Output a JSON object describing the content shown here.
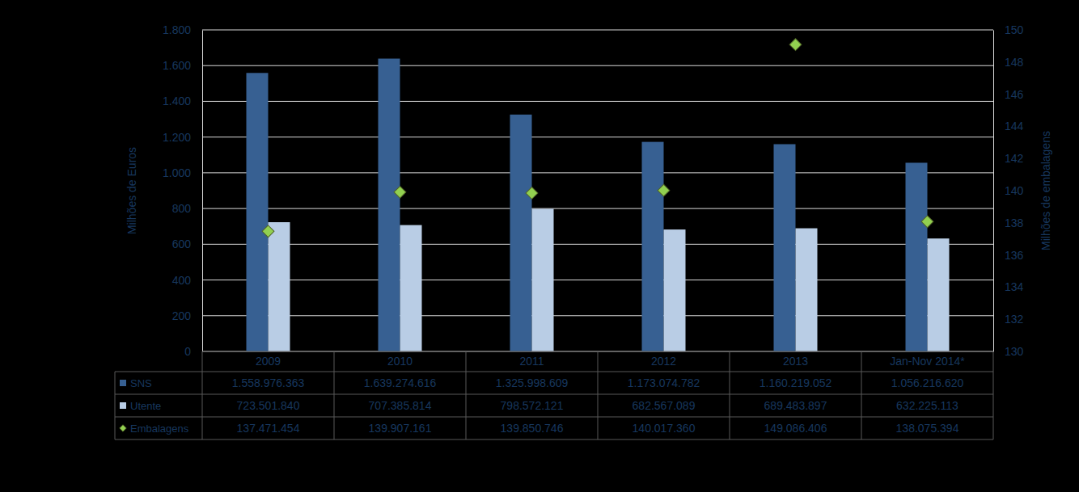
{
  "chart_data": {
    "type": "bar",
    "y_label": "Milhões de Euros",
    "y2_label": "Milhões de embalagens",
    "categories": [
      "2009",
      "2010",
      "2011",
      "2012",
      "2013",
      "Jan-Nov 2014*"
    ],
    "series": [
      {
        "name": "SNS",
        "type": "bar",
        "color": "#376092",
        "values": [
          1558.976363,
          1639.274616,
          1325.998609,
          1173.074782,
          1160.219052,
          1056.21662
        ],
        "value_labels": [
          "1.558.976.363",
          "1.639.274.616",
          "1.325.998.609",
          "1.173.074.782",
          "1.160.219.052",
          "1.056.216.620"
        ]
      },
      {
        "name": "Utente",
        "type": "bar",
        "color": "#b9cde5",
        "values": [
          723.50184,
          707.385814,
          798.572121,
          682.567089,
          689.483897,
          632.225113
        ],
        "value_labels": [
          "723.501.840",
          "707.385.814",
          "798.572.121",
          "682.567.089",
          "689.483.897",
          "632.225.113"
        ]
      },
      {
        "name": "Embalagens",
        "type": "scatter",
        "marker": "diamond",
        "axis": "y2",
        "color": "#92d050",
        "values": [
          137.471454,
          139.907161,
          139.850746,
          140.01736,
          149.086406,
          138.075394
        ],
        "value_labels": [
          "137.471.454",
          "139.907.161",
          "139.850.746",
          "140.017.360",
          "149.086.406",
          "138.075.394"
        ]
      }
    ],
    "ylim": [
      0,
      1800
    ],
    "yticks": [
      0,
      200,
      400,
      600,
      800,
      {
        "value": 1000,
        "label": "1.000"
      },
      {
        "value": 1200,
        "label": "1.200"
      },
      {
        "value": 1400,
        "label": "1.400"
      },
      {
        "value": 1600,
        "label": "1.600"
      },
      {
        "value": 1800,
        "label": "1.800"
      }
    ],
    "y2lim": [
      130,
      150
    ],
    "y2ticks": [
      130,
      132,
      134,
      136,
      138,
      140,
      142,
      144,
      146,
      148,
      150
    ],
    "grid": true
  }
}
